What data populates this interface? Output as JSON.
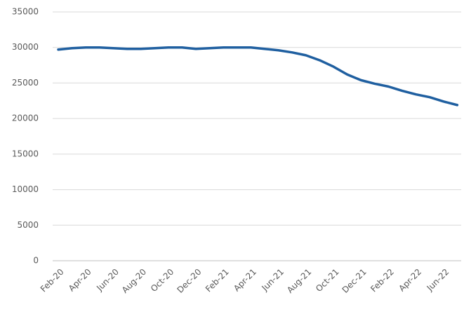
{
  "chart_data": {
    "type": "line",
    "categories": [
      "Feb-20",
      null,
      "Apr-20",
      null,
      "Jun-20",
      null,
      "Aug-20",
      null,
      "Oct-20",
      null,
      "Dec-20",
      null,
      "Feb-21",
      null,
      "Apr-21",
      null,
      "Jun-21",
      null,
      "Aug-21",
      null,
      "Oct-21",
      null,
      "Dec-21",
      null,
      "Feb-22",
      null,
      "Apr-22",
      null,
      "Jun-22",
      null
    ],
    "series": [
      {
        "color": "#1f5fa0",
        "values": [
          29700,
          29900,
          30000,
          30000,
          29900,
          29800,
          29800,
          29900,
          30000,
          30000,
          29800,
          29900,
          30000,
          30000,
          30000,
          29800,
          29600,
          29300,
          28900,
          28200,
          27300,
          26200,
          25400,
          24900,
          24500,
          23900,
          23400,
          23000,
          22400,
          21900
        ]
      }
    ],
    "ylim": [
      0,
      35000
    ],
    "yticks": [
      0,
      5000,
      10000,
      15000,
      20000,
      25000,
      30000,
      35000
    ],
    "grid": true
  }
}
